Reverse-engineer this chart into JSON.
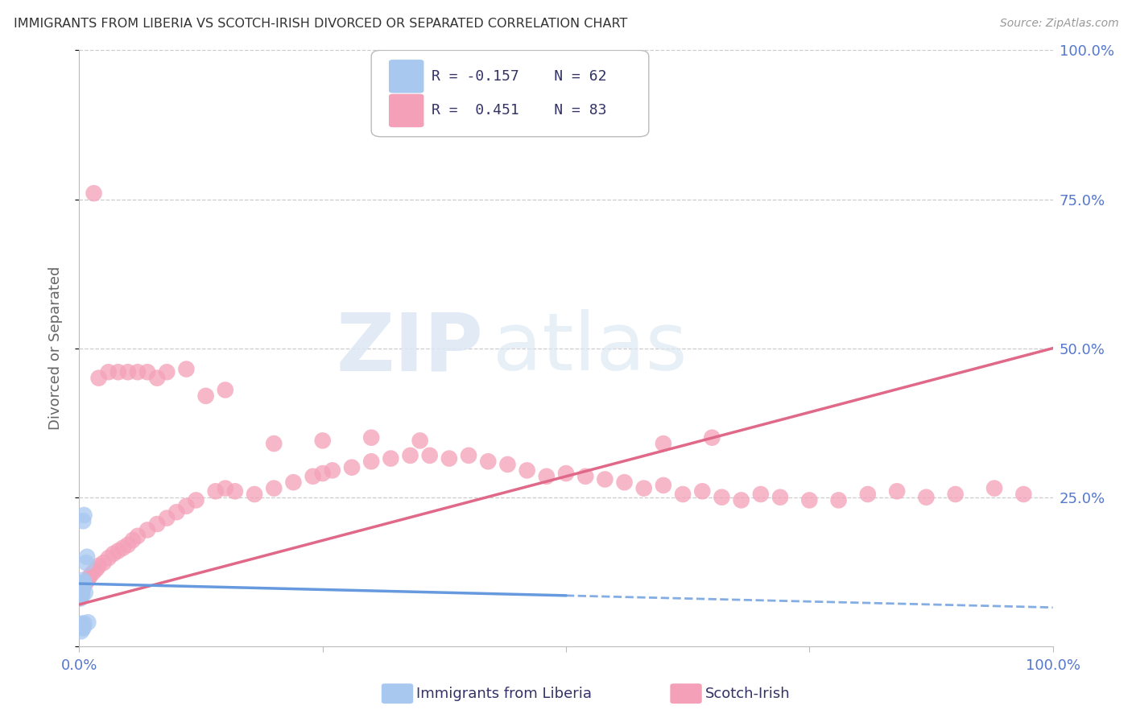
{
  "title": "IMMIGRANTS FROM LIBERIA VS SCOTCH-IRISH DIVORCED OR SEPARATED CORRELATION CHART",
  "source": "Source: ZipAtlas.com",
  "ylabel": "Divorced or Separated",
  "legend_blue_R": "R = -0.157",
  "legend_blue_N": "N = 62",
  "legend_pink_R": "R =  0.451",
  "legend_pink_N": "N = 83",
  "blue_color": "#a8c8f0",
  "pink_color": "#f4a0b8",
  "blue_line_color": "#6699dd",
  "pink_line_color": "#e06888",
  "axis_label_color": "#5577cc",
  "title_color": "#333333",
  "source_color": "#999999",
  "grid_color": "#cccccc",
  "blue_scatter_x": [
    0.001,
    0.002,
    0.001,
    0.002,
    0.003,
    0.002,
    0.001,
    0.002,
    0.003,
    0.002,
    0.001,
    0.002,
    0.003,
    0.002,
    0.001,
    0.003,
    0.002,
    0.001,
    0.002,
    0.003,
    0.002,
    0.001,
    0.002,
    0.003,
    0.002,
    0.001,
    0.002,
    0.003,
    0.002,
    0.001,
    0.002,
    0.003,
    0.002,
    0.001,
    0.002,
    0.003,
    0.004,
    0.003,
    0.002,
    0.001,
    0.002,
    0.003,
    0.004,
    0.003,
    0.002,
    0.001,
    0.002,
    0.004,
    0.003,
    0.001,
    0.004,
    0.005,
    0.006,
    0.007,
    0.008,
    0.009,
    0.003,
    0.004,
    0.002,
    0.005,
    0.005,
    0.004
  ],
  "blue_scatter_y": [
    0.085,
    0.09,
    0.095,
    0.1,
    0.105,
    0.095,
    0.088,
    0.092,
    0.098,
    0.085,
    0.09,
    0.095,
    0.1,
    0.085,
    0.092,
    0.097,
    0.089,
    0.093,
    0.087,
    0.096,
    0.091,
    0.086,
    0.094,
    0.099,
    0.088,
    0.093,
    0.087,
    0.102,
    0.096,
    0.083,
    0.091,
    0.097,
    0.089,
    0.094,
    0.088,
    0.093,
    0.098,
    0.103,
    0.092,
    0.086,
    0.096,
    0.101,
    0.107,
    0.092,
    0.087,
    0.082,
    0.096,
    0.111,
    0.085,
    0.08,
    0.21,
    0.22,
    0.09,
    0.14,
    0.15,
    0.04,
    0.038,
    0.03,
    0.025,
    0.105,
    0.038,
    0.032
  ],
  "pink_scatter_x": [
    0.001,
    0.002,
    0.003,
    0.004,
    0.006,
    0.008,
    0.01,
    0.012,
    0.015,
    0.018,
    0.02,
    0.025,
    0.03,
    0.035,
    0.04,
    0.045,
    0.05,
    0.055,
    0.06,
    0.07,
    0.08,
    0.09,
    0.1,
    0.11,
    0.12,
    0.14,
    0.15,
    0.16,
    0.18,
    0.2,
    0.22,
    0.24,
    0.25,
    0.26,
    0.28,
    0.3,
    0.32,
    0.34,
    0.36,
    0.38,
    0.4,
    0.42,
    0.44,
    0.46,
    0.48,
    0.5,
    0.52,
    0.54,
    0.56,
    0.58,
    0.6,
    0.62,
    0.64,
    0.66,
    0.68,
    0.7,
    0.72,
    0.75,
    0.78,
    0.81,
    0.84,
    0.87,
    0.9,
    0.94,
    0.97,
    0.6,
    0.65,
    0.2,
    0.25,
    0.3,
    0.35,
    0.15,
    0.08,
    0.05,
    0.03,
    0.13,
    0.09,
    0.07,
    0.11,
    0.06,
    0.04,
    0.02,
    0.015
  ],
  "pink_scatter_y": [
    0.085,
    0.09,
    0.095,
    0.1,
    0.105,
    0.11,
    0.115,
    0.12,
    0.125,
    0.13,
    0.135,
    0.14,
    0.148,
    0.155,
    0.16,
    0.165,
    0.17,
    0.178,
    0.185,
    0.195,
    0.205,
    0.215,
    0.225,
    0.235,
    0.245,
    0.26,
    0.265,
    0.26,
    0.255,
    0.265,
    0.275,
    0.285,
    0.29,
    0.295,
    0.3,
    0.31,
    0.315,
    0.32,
    0.32,
    0.315,
    0.32,
    0.31,
    0.305,
    0.295,
    0.285,
    0.29,
    0.285,
    0.28,
    0.275,
    0.265,
    0.27,
    0.255,
    0.26,
    0.25,
    0.245,
    0.255,
    0.25,
    0.245,
    0.245,
    0.255,
    0.26,
    0.25,
    0.255,
    0.265,
    0.255,
    0.34,
    0.35,
    0.34,
    0.345,
    0.35,
    0.345,
    0.43,
    0.45,
    0.46,
    0.46,
    0.42,
    0.46,
    0.46,
    0.465,
    0.46,
    0.46,
    0.45,
    0.76
  ],
  "pink_line_x0": 0.0,
  "pink_line_y0": 0.07,
  "pink_line_x1": 1.0,
  "pink_line_y1": 0.5,
  "blue_line_x0": 0.0,
  "blue_line_y0": 0.105,
  "blue_line_x1": 0.5,
  "blue_line_y1": 0.085,
  "xlim": [
    0.0,
    1.0
  ],
  "ylim": [
    0.0,
    1.0
  ],
  "ytick_vals": [
    0.0,
    0.25,
    0.5,
    0.75,
    1.0
  ],
  "xtick_vals": [
    0.0,
    0.25,
    0.5,
    0.75,
    1.0
  ],
  "xtick_labels": [
    "0.0%",
    "",
    "",
    "",
    "100.0%"
  ],
  "ytick_labels_right": [
    "",
    "25.0%",
    "50.0%",
    "75.0%",
    "100.0%"
  ]
}
